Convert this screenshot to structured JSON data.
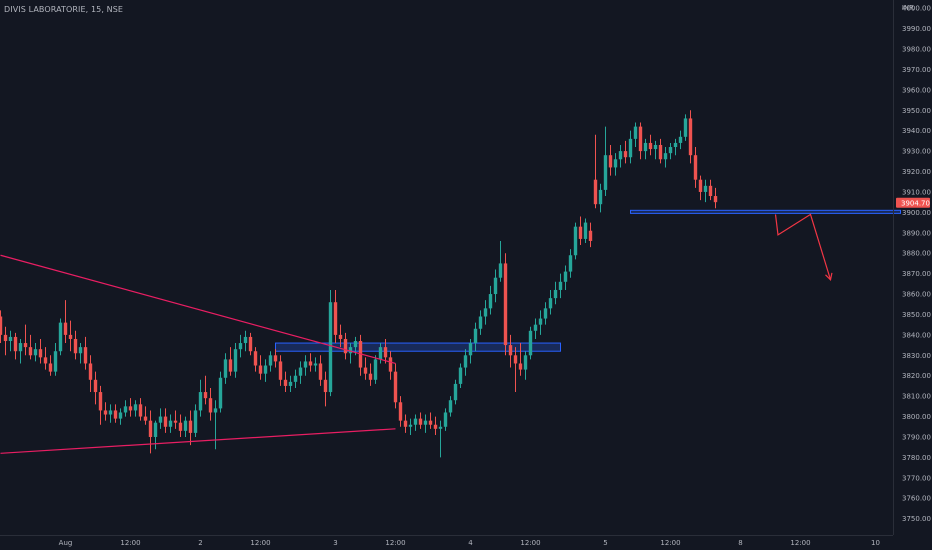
{
  "header": {
    "title": "DIVIS LABORATORIE, 15, NSE",
    "currency": "INR"
  },
  "colors": {
    "background": "#131722",
    "up": "#26a69a",
    "down": "#ef5350",
    "trendline": "#e91e63",
    "zone": "#2962ff",
    "arrow": "#f23645",
    "axis_text": "#b2b5be"
  },
  "chart_data": {
    "type": "candlestick",
    "symbol": "DIVIS LABORATORIE",
    "interval": "15",
    "exchange": "NSE",
    "ylim": [
      3742,
      4004
    ],
    "y_ticks": [
      "4000.00",
      "3990.00",
      "3980.00",
      "3970.00",
      "3960.00",
      "3950.00",
      "3940.00",
      "3930.00",
      "3920.00",
      "3910.00",
      "3900.00",
      "3890.00",
      "3880.00",
      "3870.00",
      "3860.00",
      "3850.00",
      "3840.00",
      "3830.00",
      "3820.00",
      "3810.00",
      "3800.00",
      "3790.00",
      "3780.00",
      "3770.00",
      "3760.00",
      "3750.00"
    ],
    "x_ticks": [
      {
        "label": "Aug",
        "bar": 13
      },
      {
        "label": "12:00",
        "bar": 26
      },
      {
        "label": "2",
        "bar": 40
      },
      {
        "label": "12:00",
        "bar": 52
      },
      {
        "label": "3",
        "bar": 67
      },
      {
        "label": "12:00",
        "bar": 79
      },
      {
        "label": "4",
        "bar": 94
      },
      {
        "label": "12:00",
        "bar": 106
      },
      {
        "label": "5",
        "bar": 121
      },
      {
        "label": "12:00",
        "bar": 134
      },
      {
        "label": "8",
        "bar": 148
      },
      {
        "label": "12:00",
        "bar": 160
      },
      {
        "label": "10",
        "bar": 175
      }
    ],
    "last_price": "3904.70",
    "candles": [
      [
        3849,
        3852,
        3836,
        3840
      ],
      [
        3840,
        3844,
        3830,
        3837
      ],
      [
        3837,
        3842,
        3832,
        3839
      ],
      [
        3839,
        3841,
        3828,
        3832
      ],
      [
        3832,
        3838,
        3826,
        3836
      ],
      [
        3836,
        3845,
        3830,
        3834
      ],
      [
        3834,
        3840,
        3828,
        3830
      ],
      [
        3830,
        3836,
        3827,
        3833
      ],
      [
        3833,
        3838,
        3826,
        3829
      ],
      [
        3829,
        3834,
        3823,
        3826
      ],
      [
        3826,
        3830,
        3820,
        3822
      ],
      [
        3822,
        3836,
        3820,
        3832
      ],
      [
        3832,
        3848,
        3830,
        3846
      ],
      [
        3846,
        3857,
        3836,
        3840
      ],
      [
        3840,
        3847,
        3832,
        3838
      ],
      [
        3838,
        3842,
        3828,
        3831
      ],
      [
        3831,
        3836,
        3826,
        3834
      ],
      [
        3834,
        3839,
        3823,
        3826
      ],
      [
        3826,
        3830,
        3812,
        3818
      ],
      [
        3818,
        3822,
        3806,
        3812
      ],
      [
        3812,
        3815,
        3796,
        3803
      ],
      [
        3803,
        3807,
        3798,
        3801
      ],
      [
        3801,
        3806,
        3797,
        3803
      ],
      [
        3803,
        3806,
        3797,
        3799
      ],
      [
        3799,
        3804,
        3796,
        3802
      ],
      [
        3802,
        3808,
        3800,
        3805
      ],
      [
        3805,
        3809,
        3800,
        3803
      ],
      [
        3803,
        3808,
        3800,
        3806
      ],
      [
        3806,
        3809,
        3798,
        3800
      ],
      [
        3800,
        3805,
        3796,
        3798
      ],
      [
        3798,
        3803,
        3782,
        3790
      ],
      [
        3790,
        3798,
        3784,
        3797
      ],
      [
        3797,
        3804,
        3794,
        3800
      ],
      [
        3800,
        3804,
        3792,
        3795
      ],
      [
        3795,
        3801,
        3792,
        3798
      ],
      [
        3798,
        3803,
        3794,
        3797
      ],
      [
        3797,
        3801,
        3790,
        3793
      ],
      [
        3793,
        3800,
        3790,
        3798
      ],
      [
        3798,
        3803,
        3786,
        3792
      ],
      [
        3792,
        3806,
        3790,
        3803
      ],
      [
        3803,
        3818,
        3800,
        3812
      ],
      [
        3812,
        3820,
        3806,
        3809
      ],
      [
        3809,
        3814,
        3798,
        3802
      ],
      [
        3802,
        3808,
        3784,
        3804
      ],
      [
        3804,
        3822,
        3802,
        3819
      ],
      [
        3819,
        3831,
        3816,
        3828
      ],
      [
        3828,
        3834,
        3820,
        3822
      ],
      [
        3822,
        3836,
        3819,
        3833
      ],
      [
        3833,
        3840,
        3829,
        3836
      ],
      [
        3836,
        3842,
        3832,
        3839
      ],
      [
        3839,
        3841,
        3830,
        3832
      ],
      [
        3832,
        3834,
        3822,
        3825
      ],
      [
        3825,
        3830,
        3818,
        3821
      ],
      [
        3821,
        3828,
        3817,
        3825
      ],
      [
        3825,
        3832,
        3822,
        3830
      ],
      [
        3830,
        3833,
        3824,
        3827
      ],
      [
        3827,
        3830,
        3815,
        3818
      ],
      [
        3818,
        3822,
        3812,
        3815
      ],
      [
        3815,
        3820,
        3812,
        3817
      ],
      [
        3817,
        3823,
        3814,
        3820
      ],
      [
        3820,
        3827,
        3816,
        3824
      ],
      [
        3824,
        3830,
        3820,
        3827
      ],
      [
        3827,
        3831,
        3822,
        3825
      ],
      [
        3825,
        3829,
        3822,
        3826
      ],
      [
        3826,
        3830,
        3815,
        3818
      ],
      [
        3818,
        3822,
        3805,
        3812
      ],
      [
        3812,
        3862,
        3810,
        3856
      ],
      [
        3856,
        3862,
        3836,
        3840
      ],
      [
        3840,
        3845,
        3834,
        3838
      ],
      [
        3838,
        3841,
        3828,
        3831
      ],
      [
        3831,
        3836,
        3826,
        3834
      ],
      [
        3834,
        3839,
        3830,
        3837
      ],
      [
        3837,
        3840,
        3820,
        3824
      ],
      [
        3824,
        3829,
        3818,
        3821
      ],
      [
        3821,
        3826,
        3815,
        3818
      ],
      [
        3818,
        3830,
        3816,
        3828
      ],
      [
        3828,
        3836,
        3826,
        3834
      ],
      [
        3834,
        3838,
        3826,
        3829
      ],
      [
        3829,
        3832,
        3818,
        3822
      ],
      [
        3822,
        3826,
        3804,
        3807
      ],
      [
        3807,
        3810,
        3795,
        3798
      ],
      [
        3798,
        3801,
        3792,
        3795
      ],
      [
        3795,
        3799,
        3791,
        3796
      ],
      [
        3796,
        3801,
        3793,
        3799
      ],
      [
        3799,
        3802,
        3794,
        3796
      ],
      [
        3796,
        3801,
        3792,
        3798
      ],
      [
        3798,
        3802,
        3794,
        3796
      ],
      [
        3796,
        3800,
        3791,
        3794
      ],
      [
        3794,
        3798,
        3780,
        3795
      ],
      [
        3795,
        3804,
        3793,
        3802
      ],
      [
        3802,
        3810,
        3800,
        3808
      ],
      [
        3808,
        3818,
        3806,
        3816
      ],
      [
        3816,
        3826,
        3814,
        3824
      ],
      [
        3824,
        3833,
        3820,
        3830
      ],
      [
        3830,
        3838,
        3826,
        3836
      ],
      [
        3836,
        3846,
        3832,
        3843
      ],
      [
        3843,
        3852,
        3840,
        3849
      ],
      [
        3849,
        3857,
        3845,
        3853
      ],
      [
        3853,
        3864,
        3850,
        3860
      ],
      [
        3860,
        3872,
        3856,
        3868
      ],
      [
        3868,
        3886,
        3866,
        3875
      ],
      [
        3875,
        3880,
        3830,
        3835
      ],
      [
        3835,
        3840,
        3824,
        3830
      ],
      [
        3830,
        3834,
        3812,
        3826
      ],
      [
        3826,
        3836,
        3820,
        3823
      ],
      [
        3823,
        3832,
        3818,
        3830
      ],
      [
        3830,
        3844,
        3828,
        3842
      ],
      [
        3842,
        3848,
        3838,
        3845
      ],
      [
        3845,
        3852,
        3840,
        3848
      ],
      [
        3848,
        3856,
        3845,
        3853
      ],
      [
        3853,
        3862,
        3850,
        3858
      ],
      [
        3858,
        3866,
        3855,
        3862
      ],
      [
        3862,
        3870,
        3858,
        3866
      ],
      [
        3866,
        3874,
        3862,
        3871
      ],
      [
        3871,
        3882,
        3868,
        3879
      ],
      [
        3879,
        3895,
        3877,
        3893
      ],
      [
        3893,
        3898,
        3884,
        3887
      ],
      [
        3887,
        3897,
        3885,
        3895
      ],
      [
        3891,
        3895,
        3883,
        3886
      ],
      [
        3916,
        3938,
        3902,
        3904
      ],
      [
        3904,
        3914,
        3900,
        3911
      ],
      [
        3911,
        3942,
        3908,
        3928
      ],
      [
        3928,
        3933,
        3918,
        3922
      ],
      [
        3922,
        3929,
        3918,
        3926
      ],
      [
        3926,
        3933,
        3922,
        3930
      ],
      [
        3930,
        3935,
        3924,
        3927
      ],
      [
        3927,
        3940,
        3924,
        3936
      ],
      [
        3936,
        3944,
        3932,
        3942
      ],
      [
        3942,
        3944,
        3926,
        3930
      ],
      [
        3930,
        3936,
        3926,
        3934
      ],
      [
        3934,
        3938,
        3928,
        3931
      ],
      [
        3931,
        3935,
        3926,
        3933
      ],
      [
        3933,
        3936,
        3924,
        3926
      ],
      [
        3926,
        3932,
        3922,
        3929
      ],
      [
        3929,
        3934,
        3926,
        3932
      ],
      [
        3932,
        3936,
        3928,
        3934
      ],
      [
        3934,
        3940,
        3931,
        3937
      ],
      [
        3937,
        3948,
        3935,
        3946
      ],
      [
        3946,
        3950,
        3924,
        3928
      ],
      [
        3928,
        3932,
        3912,
        3916
      ],
      [
        3916,
        3918,
        3906,
        3910
      ],
      [
        3910,
        3916,
        3905,
        3913
      ],
      [
        3913,
        3916,
        3906,
        3908
      ],
      [
        3908,
        3912,
        3902,
        3905
      ]
    ],
    "annotations": {
      "descending_trendline": {
        "from": {
          "bar": 0,
          "price": 3879
        },
        "to": {
          "bar": 79,
          "price": 3826
        }
      },
      "ascending_trendline": {
        "from": {
          "bar": 0,
          "price": 3782
        },
        "to": {
          "bar": 79,
          "price": 3794
        }
      },
      "support_zone_1": {
        "from_bar": 55,
        "to_bar": 112,
        "top": 3836,
        "bottom": 3832
      },
      "support_zone_2": {
        "from_bar": 126,
        "to_bar": 180,
        "top": 3901,
        "bottom": 3899.5
      },
      "projection_arrow": [
        {
          "bar": 155,
          "price": 3899
        },
        {
          "bar": 155.5,
          "price": 3889
        },
        {
          "bar": 162,
          "price": 3899
        },
        {
          "bar": 166,
          "price": 3867
        }
      ]
    }
  }
}
